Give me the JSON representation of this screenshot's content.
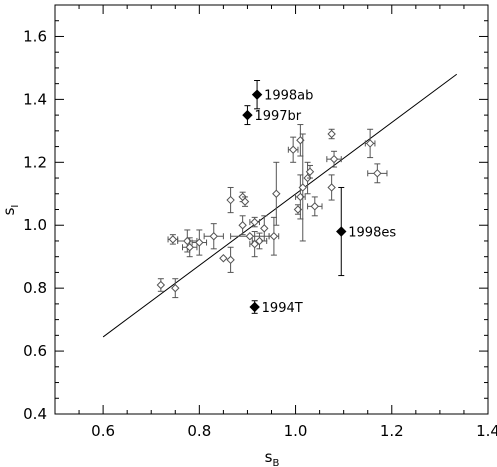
{
  "chart_data": {
    "type": "scatter",
    "title": "",
    "xlabel": "s",
    "xlabel_sub": "B",
    "ylabel": "s",
    "ylabel_sub": "I",
    "xlim": [
      0.5,
      1.4
    ],
    "ylim": [
      0.4,
      1.7
    ],
    "xticks": [
      0.6,
      0.8,
      1.0,
      1.2,
      1.4
    ],
    "xtick_labels": [
      "0.6",
      "0.8",
      "1.0",
      "1.2",
      "1.4"
    ],
    "yticks": [
      0.4,
      0.6,
      0.8,
      1.0,
      1.2,
      1.4,
      1.6
    ],
    "ytick_labels": [
      "0.4",
      "0.6",
      "0.8",
      "1.0",
      "1.2",
      "1.4",
      "1.6"
    ],
    "grid": false,
    "fit_line": {
      "x": [
        0.6,
        1.335
      ],
      "y": [
        0.645,
        1.48
      ]
    },
    "series": [
      {
        "marker": "open-diamond",
        "points": [
          {
            "x": 0.72,
            "y": 0.81,
            "xerr": 0.0,
            "yerr": 0.02
          },
          {
            "x": 0.75,
            "y": 0.8,
            "xerr": 0.0,
            "yerr": 0.03
          },
          {
            "x": 0.745,
            "y": 0.955,
            "xerr": 0.01,
            "yerr": 0.015
          },
          {
            "x": 0.775,
            "y": 0.95,
            "xerr": 0.02,
            "yerr": 0.035
          },
          {
            "x": 0.78,
            "y": 0.93,
            "xerr": 0.015,
            "yerr": 0.03
          },
          {
            "x": 0.8,
            "y": 0.945,
            "xerr": 0.015,
            "yerr": 0.04
          },
          {
            "x": 0.83,
            "y": 0.965,
            "xerr": 0.02,
            "yerr": 0.04
          },
          {
            "x": 0.85,
            "y": 0.895,
            "xerr": 0.0,
            "yerr": 0.0
          },
          {
            "x": 0.865,
            "y": 0.89,
            "xerr": 0.0,
            "yerr": 0.04
          },
          {
            "x": 0.865,
            "y": 1.08,
            "xerr": 0.0,
            "yerr": 0.04
          },
          {
            "x": 0.89,
            "y": 1.09,
            "xerr": 0.0,
            "yerr": 0.015
          },
          {
            "x": 0.895,
            "y": 1.075,
            "xerr": 0.0,
            "yerr": 0.015
          },
          {
            "x": 0.89,
            "y": 1.0,
            "xerr": 0.0,
            "yerr": 0.03
          },
          {
            "x": 0.905,
            "y": 0.965,
            "xerr": 0.04,
            "yerr": 0.0
          },
          {
            "x": 0.915,
            "y": 1.01,
            "xerr": 0.01,
            "yerr": 0.015
          },
          {
            "x": 0.915,
            "y": 0.94,
            "xerr": 0.01,
            "yerr": 0.04
          },
          {
            "x": 0.925,
            "y": 0.95,
            "xerr": 0.015,
            "yerr": 0.025
          },
          {
            "x": 0.935,
            "y": 0.99,
            "xerr": 0.0,
            "yerr": 0.04
          },
          {
            "x": 0.955,
            "y": 0.965,
            "xerr": 0.01,
            "yerr": 0.06
          },
          {
            "x": 0.96,
            "y": 1.1,
            "xerr": 0.0,
            "yerr": 0.1
          },
          {
            "x": 0.995,
            "y": 1.24,
            "xerr": 0.01,
            "yerr": 0.04
          },
          {
            "x": 1.005,
            "y": 1.05,
            "xerr": 0.0,
            "yerr": 0.015
          },
          {
            "x": 1.01,
            "y": 1.27,
            "xerr": 0.0,
            "yerr": 0.05
          },
          {
            "x": 1.01,
            "y": 1.09,
            "xerr": 0.01,
            "yerr": 0.07
          },
          {
            "x": 1.015,
            "y": 1.12,
            "xerr": 0.0,
            "yerr": 0.17
          },
          {
            "x": 1.025,
            "y": 1.15,
            "xerr": 0.0,
            "yerr": 0.05
          },
          {
            "x": 1.03,
            "y": 1.17,
            "xerr": 0.0,
            "yerr": 0.02
          },
          {
            "x": 1.04,
            "y": 1.06,
            "xerr": 0.015,
            "yerr": 0.03
          },
          {
            "x": 1.075,
            "y": 1.29,
            "xerr": 0.0,
            "yerr": 0.015
          },
          {
            "x": 1.08,
            "y": 1.21,
            "xerr": 0.015,
            "yerr": 0.025
          },
          {
            "x": 1.075,
            "y": 1.12,
            "xerr": 0.0,
            "yerr": 0.04
          },
          {
            "x": 1.155,
            "y": 1.26,
            "xerr": 0.01,
            "yerr": 0.045
          },
          {
            "x": 1.17,
            "y": 1.165,
            "xerr": 0.02,
            "yerr": 0.03
          }
        ]
      },
      {
        "marker": "filled-diamond",
        "points": [
          {
            "label": "1998ab",
            "x": 0.92,
            "y": 1.415,
            "xerr": 0.0,
            "yerr": 0.045
          },
          {
            "label": "1997br",
            "x": 0.9,
            "y": 1.35,
            "xerr": 0.0,
            "yerr": 0.03
          },
          {
            "label": "1998es",
            "x": 1.095,
            "y": 0.98,
            "xerr": 0.0,
            "yerr": 0.14
          },
          {
            "label": "1994T",
            "x": 0.915,
            "y": 0.74,
            "xerr": 0.0,
            "yerr": 0.02
          }
        ]
      }
    ]
  }
}
